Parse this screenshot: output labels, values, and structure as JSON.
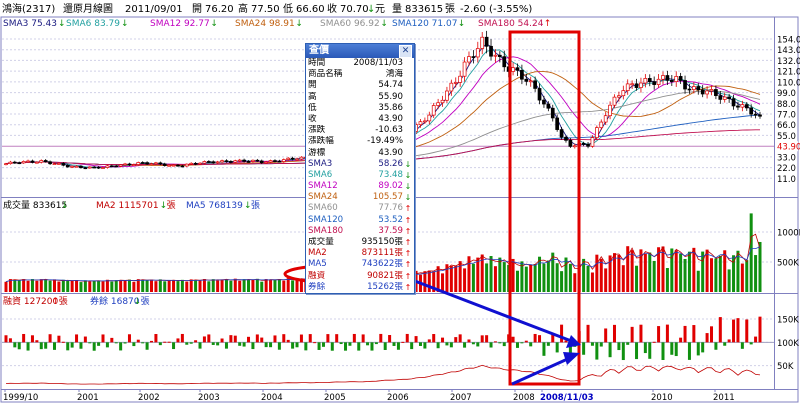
{
  "header": {
    "stock_name": "鴻海(2317)",
    "chart_mode": "還原月線圖",
    "date": "2011/09/01",
    "open_label": "開",
    "open": "76.20",
    "high_label": "高",
    "high": "77.50",
    "low_label": "低",
    "low": "66.60",
    "close_label": "收",
    "close": "70.70",
    "close_suffix": "元",
    "volume_label": "量",
    "volume": "833615",
    "volume_unit": "張",
    "change": "-2.60 (-3.55%)"
  },
  "colors": {
    "up": "#e00000",
    "down": "#109010",
    "border": "#8080c0",
    "grid": "#d0d0e8",
    "sma3": "#1a1a80",
    "sma6": "#22a0a0",
    "sma12": "#c000c0",
    "sma24": "#c06010",
    "sma60": "#909090",
    "sma120": "#2060c0",
    "sma180": "#c01050",
    "highlight_box": "#e00000",
    "arrow": "#1010d0",
    "ma2": "#c00000",
    "ma5": "#2040c0"
  },
  "price_legend": [
    {
      "id": "sma3",
      "label": "SMA3 75.43",
      "dir": "down"
    },
    {
      "id": "sma6",
      "label": "SMA6 83.79",
      "dir": "down"
    },
    {
      "id": "sma12",
      "label": "SMA12 92.77",
      "dir": "down"
    },
    {
      "id": "sma24",
      "label": "SMA24 98.91",
      "dir": "down"
    },
    {
      "id": "sma60",
      "label": "SMA60 96.92",
      "dir": "down"
    },
    {
      "id": "sma120",
      "label": "SMA120 71.07",
      "dir": "down"
    },
    {
      "id": "sma180",
      "label": "SMA180 54.24",
      "dir": "up"
    }
  ],
  "volume_legend": [
    {
      "label": "成交量 833615",
      "dir": "down",
      "color": "#000000"
    },
    {
      "label": "MA2 1115701",
      "dir": "down",
      "color": "#c00000",
      "unit": "張"
    },
    {
      "label": "MA5 768139",
      "dir": "down",
      "color": "#2040c0",
      "unit": "張"
    }
  ],
  "margin_legend": [
    {
      "label": "融資 127200",
      "dir": "up",
      "color": "#c00000",
      "unit": "張"
    },
    {
      "label": "券餘 16870",
      "dir": "down",
      "color": "#2040c0",
      "unit": "張"
    }
  ],
  "popup": {
    "title": "查價",
    "close_symbol": "✕",
    "rows": [
      {
        "label": "時間",
        "value": "2008/11/03",
        "color": "#000000",
        "dir": ""
      },
      {
        "label": "商品名稱",
        "value": "鴻海",
        "color": "#000000",
        "dir": ""
      },
      {
        "label": "開",
        "value": "54.74",
        "color": "#000000",
        "dir": ""
      },
      {
        "label": "高",
        "value": "55.90",
        "color": "#000000",
        "dir": ""
      },
      {
        "label": "低",
        "value": "35.86",
        "color": "#000000",
        "dir": ""
      },
      {
        "label": "收",
        "value": "43.90",
        "color": "#000000",
        "dir": ""
      },
      {
        "label": "漲跌",
        "value": "-10.63",
        "color": "#000000",
        "dir": ""
      },
      {
        "label": "漲跌幅",
        "value": "-19.49%",
        "color": "#000000",
        "dir": ""
      },
      {
        "label": "游標",
        "value": "43.90",
        "color": "#000000",
        "dir": ""
      },
      {
        "label": "SMA3",
        "value": "58.26",
        "color": "#1a1a80",
        "dir": "down"
      },
      {
        "label": "SMA6",
        "value": "73.48",
        "color": "#22a0a0",
        "dir": "down"
      },
      {
        "label": "SMA12",
        "value": "89.02",
        "color": "#c000c0",
        "dir": "down"
      },
      {
        "label": "SMA24",
        "value": "105.57",
        "color": "#c06010",
        "dir": "down"
      },
      {
        "label": "SMA60",
        "value": "77.76",
        "color": "#909090",
        "dir": "up"
      },
      {
        "label": "SMA120",
        "value": "53.52",
        "color": "#2060c0",
        "dir": "up"
      },
      {
        "label": "SMA180",
        "value": "37.59",
        "color": "#c01050",
        "dir": "up"
      },
      {
        "label": "成交量",
        "value": "935150張",
        "color": "#000000",
        "dir": "up"
      },
      {
        "label": "MA2",
        "value": "873111張",
        "color": "#c00000",
        "dir": "up"
      },
      {
        "label": "MA5",
        "value": "743622張",
        "color": "#2040c0",
        "dir": "up"
      },
      {
        "label": "融資",
        "value": "90821張",
        "color": "#c00000",
        "dir": "up"
      },
      {
        "label": "券餘",
        "value": "15262張",
        "color": "#2040c0",
        "dir": "up"
      }
    ]
  },
  "x_axis": {
    "labels": [
      "1999/10",
      "2001",
      "2002",
      "2003",
      "2004",
      "2005",
      "2006",
      "2007",
      "2008",
      "2008/11/03",
      "2010",
      "2011"
    ]
  },
  "chart_data": [
    {
      "type": "candlestick",
      "title": "還原月線圖",
      "yticks": [
        "154.0",
        "143.0",
        "132.0",
        "121.0",
        "110.0",
        "99.0",
        "88.0",
        "77.0",
        "66.0",
        "55.0",
        "43.90",
        "33.0",
        "22.0",
        "11.0"
      ],
      "ylim": [
        0,
        160
      ],
      "cursor_value": "43.90",
      "highlight_date": "2008/11/03",
      "highlight_ohlc": {
        "open": 54.74,
        "high": 55.9,
        "low": 35.86,
        "close": 43.9
      },
      "last_ohlc": {
        "open": 76.2,
        "high": 77.5,
        "low": 66.6,
        "close": 70.7
      },
      "grid": true
    },
    {
      "type": "bar",
      "title": "成交量",
      "yticks": [
        "1000K",
        "500K"
      ],
      "ylim": [
        0,
        1400000
      ],
      "last_value": 833615,
      "highlight_value": 935150
    },
    {
      "type": "bar",
      "title": "融資 / 券餘",
      "yticks": [
        "150K",
        "100K",
        "50K"
      ],
      "ylim": [
        0,
        180000
      ],
      "margin_last": 127200,
      "short_last": 16870,
      "highlight_margin": 90821,
      "highlight_short": 15262
    }
  ]
}
